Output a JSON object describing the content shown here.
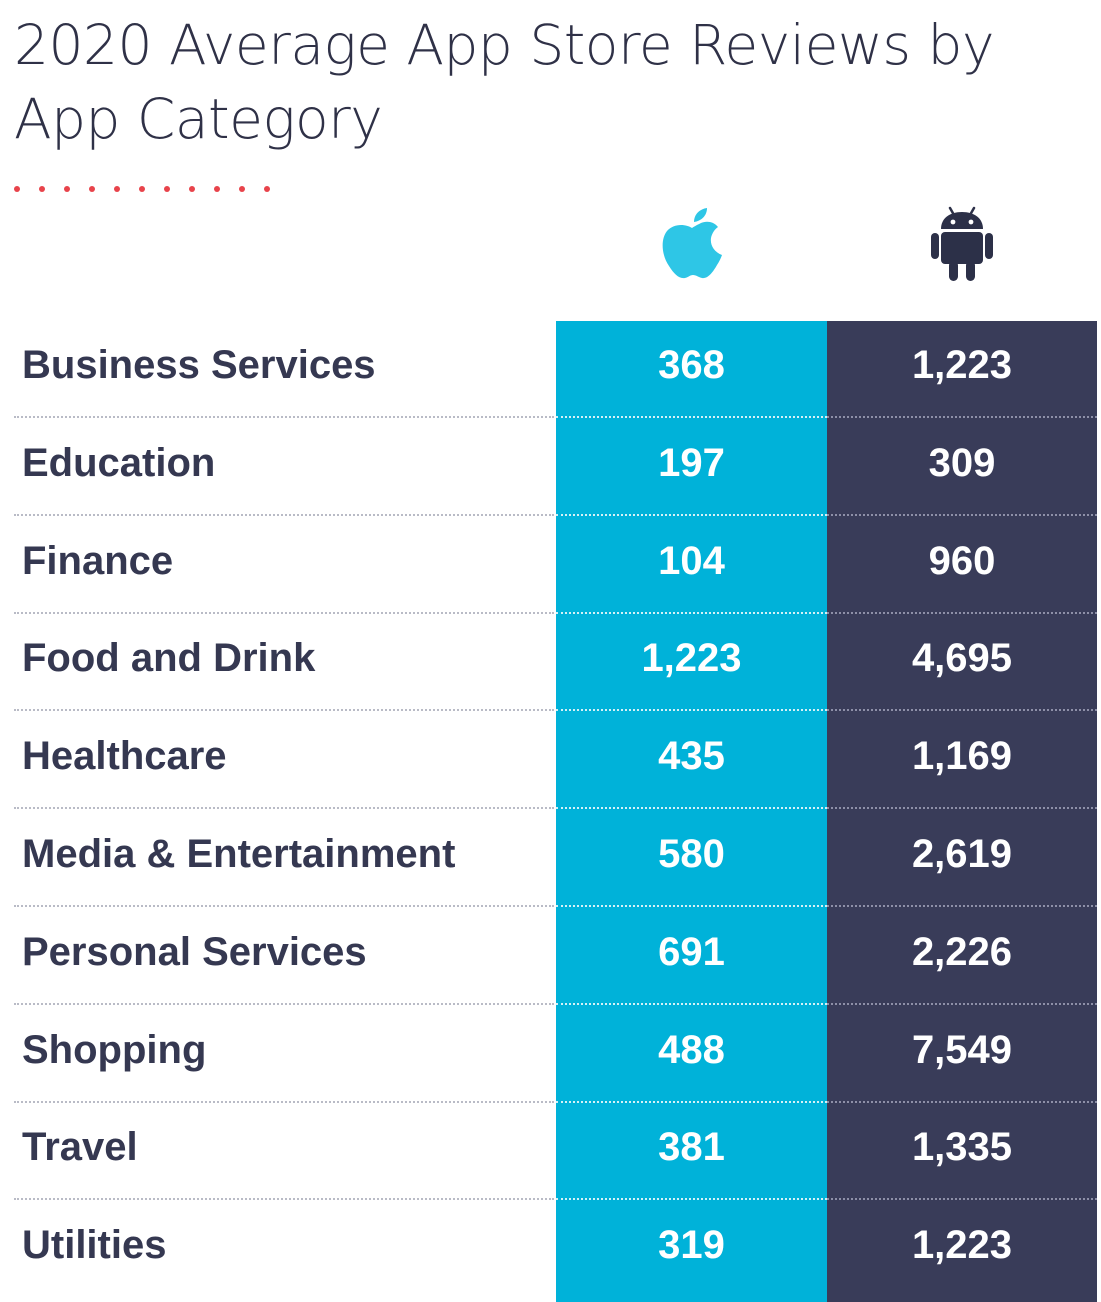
{
  "title": "2020 Average App Store Reviews by App Category",
  "colors": {
    "ios": "#00b2d9",
    "android": "#393c59",
    "accent_dots": "#e8434b",
    "text": "#353851"
  },
  "icons": {
    "ios_column": "apple-icon",
    "android_column": "android-icon"
  },
  "chart_data": {
    "type": "table",
    "title": "2020 Average App Store Reviews by App Category",
    "columns": [
      "iOS App Store",
      "Google Play"
    ],
    "categories": [
      "Business Services",
      "Education",
      "Finance",
      "Food and Drink",
      "Healthcare",
      "Media & Entertainment",
      "Personal Services",
      "Shopping",
      "Travel",
      "Utilities"
    ],
    "series": [
      {
        "values": [
          368,
          197,
          104,
          1223,
          435,
          580,
          691,
          488,
          381,
          319
        ],
        "labels": [
          "368",
          "197",
          "104",
          "1,223",
          "435",
          "580",
          "691",
          "488",
          "381",
          "319"
        ]
      },
      {
        "values": [
          1223,
          309,
          960,
          4695,
          1169,
          2619,
          2226,
          7549,
          1335,
          1223
        ],
        "labels": [
          "1,223",
          "309",
          "960",
          "4,695",
          "1,169",
          "2,619",
          "2,226",
          "7,549",
          "1,335",
          "1,223"
        ]
      }
    ]
  }
}
